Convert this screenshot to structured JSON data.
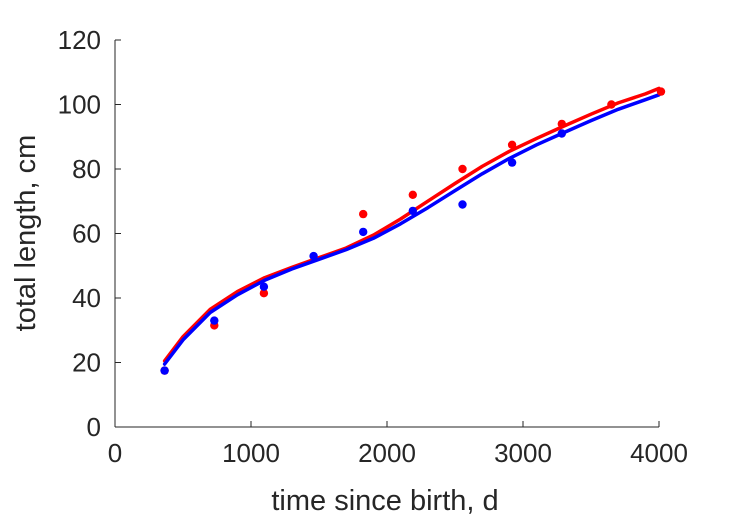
{
  "chart_data": {
    "type": "scatter",
    "title": "",
    "xlabel": "time since birth, d",
    "ylabel": "total length, cm",
    "xlim": [
      0,
      4000
    ],
    "ylim": [
      0,
      120
    ],
    "x_ticks": [
      "0",
      "1000",
      "2000",
      "3000",
      "4000"
    ],
    "y_ticks": [
      "0",
      "20",
      "40",
      "60",
      "80",
      "100",
      "120"
    ],
    "grid": false,
    "legend": "none",
    "series": [
      {
        "color": "#ff0000",
        "points": [
          [
            365,
            17.5
          ],
          [
            730,
            31.5
          ],
          [
            1095,
            41.5
          ],
          [
            1825,
            66
          ],
          [
            2190,
            72
          ],
          [
            2555,
            80
          ],
          [
            2920,
            87.5
          ],
          [
            3285,
            94
          ],
          [
            3650,
            100
          ],
          [
            4015,
            104
          ]
        ],
        "fit": [
          [
            365,
            20.5
          ],
          [
            500,
            28
          ],
          [
            700,
            36.5
          ],
          [
            900,
            42
          ],
          [
            1100,
            46.3
          ],
          [
            1300,
            49.5
          ],
          [
            1500,
            52.5
          ],
          [
            1700,
            55.5
          ],
          [
            1900,
            59.5
          ],
          [
            2100,
            64.5
          ],
          [
            2300,
            70
          ],
          [
            2500,
            75.5
          ],
          [
            2700,
            80.8
          ],
          [
            2900,
            85.5
          ],
          [
            3100,
            89.5
          ],
          [
            3300,
            93.3
          ],
          [
            3500,
            97
          ],
          [
            3700,
            100.5
          ],
          [
            3900,
            103.3
          ],
          [
            4000,
            105
          ]
        ]
      },
      {
        "color": "#0000ff",
        "points": [
          [
            365,
            17.5
          ],
          [
            730,
            33
          ],
          [
            1095,
            43.5
          ],
          [
            1460,
            53
          ],
          [
            1825,
            60.5
          ],
          [
            2190,
            67
          ],
          [
            2555,
            69
          ],
          [
            2920,
            82
          ],
          [
            3285,
            91
          ]
        ],
        "fit": [
          [
            365,
            19.5
          ],
          [
            500,
            27
          ],
          [
            700,
            35.5
          ],
          [
            900,
            41
          ],
          [
            1100,
            45.5
          ],
          [
            1300,
            49
          ],
          [
            1500,
            52
          ],
          [
            1700,
            55
          ],
          [
            1900,
            58.5
          ],
          [
            2100,
            63
          ],
          [
            2300,
            68
          ],
          [
            2500,
            73.3
          ],
          [
            2700,
            78.5
          ],
          [
            2900,
            83.3
          ],
          [
            3100,
            87.5
          ],
          [
            3300,
            91.3
          ],
          [
            3500,
            95
          ],
          [
            3700,
            98.5
          ],
          [
            3900,
            101.5
          ],
          [
            4000,
            103
          ]
        ]
      }
    ]
  }
}
